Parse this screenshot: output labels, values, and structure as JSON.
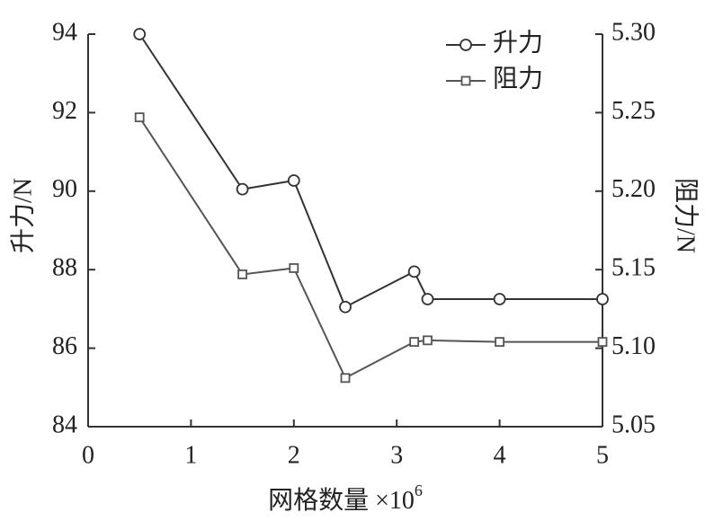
{
  "chart_data": {
    "type": "line",
    "xlabel": "网格数量 ×10",
    "xlabel_exponent": "6",
    "ylabel": "升力/N",
    "y2label": "阻力/N",
    "x": [
      0.5,
      1.5,
      2,
      2.5,
      3.17,
      3.3,
      4,
      5
    ],
    "series": [
      {
        "name": "升力",
        "color": "#333333",
        "marker": "circle",
        "values": [
          94.0,
          90.05,
          90.27,
          87.05,
          87.95,
          87.25,
          87.25,
          87.25
        ]
      },
      {
        "name": "阻力",
        "color": "#555555",
        "marker": "square",
        "axis": "y2",
        "values": [
          5.247,
          5.147,
          5.151,
          5.081,
          5.104,
          5.105,
          5.104,
          5.104
        ]
      }
    ],
    "xlim": [
      0,
      5
    ],
    "xticks": [
      0,
      1,
      2,
      3,
      4,
      5
    ],
    "ylim": [
      84,
      94
    ],
    "yticks": [
      84,
      86,
      88,
      90,
      92,
      94
    ],
    "y2lim": [
      5.05,
      5.3
    ],
    "y2ticks": [
      5.05,
      {
        "value": 5.1,
        "label": "5.10"
      },
      5.15,
      {
        "value": 5.2,
        "label": "5.20"
      },
      5.25,
      {
        "value": 5.3,
        "label": "5.30"
      }
    ],
    "legend": "upper right",
    "grid": false
  }
}
